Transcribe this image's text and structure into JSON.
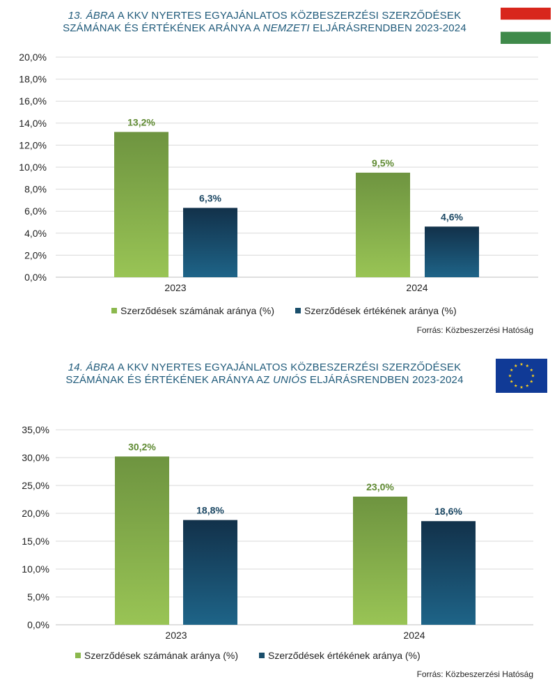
{
  "colors": {
    "title": "#1f5a7a",
    "green_top": "#6e9440",
    "green_bottom": "#99c455",
    "blue_top": "#12314a",
    "blue_bottom": "#1e6488",
    "green_label": "#5f8a32",
    "blue_label": "#1b4763",
    "flag_red": "#d8261c",
    "flag_white": "#ffffff",
    "flag_green": "#3f8a4a",
    "eu_blue": "#103a96",
    "eu_star": "#ffd21a"
  },
  "charts": [
    {
      "title_num": "13. ÁBRA",
      "title_line1_rest": " A KKV NYERTES EGYAJÁNLATOS KÖZBESZERZÉSI SZERZŐDÉSEK",
      "title_line2_pre": "SZÁMÁNAK ÉS ÉRTÉKÉNEK ARÁNYA A ",
      "title_line2_em": "NEMZETI",
      "title_line2_post": " ELJÁRÁSRENDBEN 2023-2024",
      "legend": [
        "Szerződések számának aránya (%)",
        "Szerződések értékének aránya (%)"
      ],
      "source": "Forrás: Közbeszerzési Hatóság",
      "flag_icon": "hungarian-flag-icon"
    },
    {
      "title_num": "14. ÁBRA",
      "title_line1_rest": " A KKV NYERTES EGYAJÁNLATOS KÖZBESZERZÉSI SZERZŐDÉSEK",
      "title_line2_pre": "SZÁMÁNAK ÉS ÉRTÉKÉNEK ARÁNYA AZ ",
      "title_line2_em": "UNIÓS",
      "title_line2_post": " ELJÁRÁSRENDBEN 2023-2024",
      "legend": [
        "Szerződések számának aránya (%)",
        "Szerződések értékének aránya (%)"
      ],
      "source": "Forrás: Közbeszerzési Hatóság",
      "flag_icon": "eu-flag-icon"
    }
  ],
  "chart_data": [
    {
      "type": "bar",
      "categories": [
        "2023",
        "2024"
      ],
      "series": [
        {
          "name": "Szerződések számának aránya (%)",
          "values": [
            13.2,
            9.5
          ],
          "labels": [
            "13,2%",
            "9,5%"
          ]
        },
        {
          "name": "Szerződések értékének aránya (%)",
          "values": [
            6.3,
            4.6
          ],
          "labels": [
            "6,3%",
            "4,6%"
          ]
        }
      ],
      "ylim": [
        0,
        20
      ],
      "yticks": [
        0,
        2,
        4,
        6,
        8,
        10,
        12,
        14,
        16,
        18,
        20
      ],
      "ytick_labels": [
        "0,0%",
        "2,0%",
        "4,0%",
        "6,0%",
        "8,0%",
        "10,0%",
        "12,0%",
        "14,0%",
        "16,0%",
        "18,0%",
        "20,0%"
      ],
      "grid": true,
      "legend_position": "bottom"
    },
    {
      "type": "bar",
      "categories": [
        "2023",
        "2024"
      ],
      "series": [
        {
          "name": "Szerződések számának aránya (%)",
          "values": [
            30.2,
            23.0
          ],
          "labels": [
            "30,2%",
            "23,0%"
          ]
        },
        {
          "name": "Szerződések értékének aránya (%)",
          "values": [
            18.8,
            18.6
          ],
          "labels": [
            "18,8%",
            "18,6%"
          ]
        }
      ],
      "ylim": [
        0,
        35
      ],
      "yticks": [
        0,
        5,
        10,
        15,
        20,
        25,
        30,
        35
      ],
      "ytick_labels": [
        "0,0%",
        "5,0%",
        "10,0%",
        "15,0%",
        "20,0%",
        "25,0%",
        "30,0%",
        "35,0%"
      ],
      "grid": true,
      "legend_position": "bottom"
    }
  ]
}
